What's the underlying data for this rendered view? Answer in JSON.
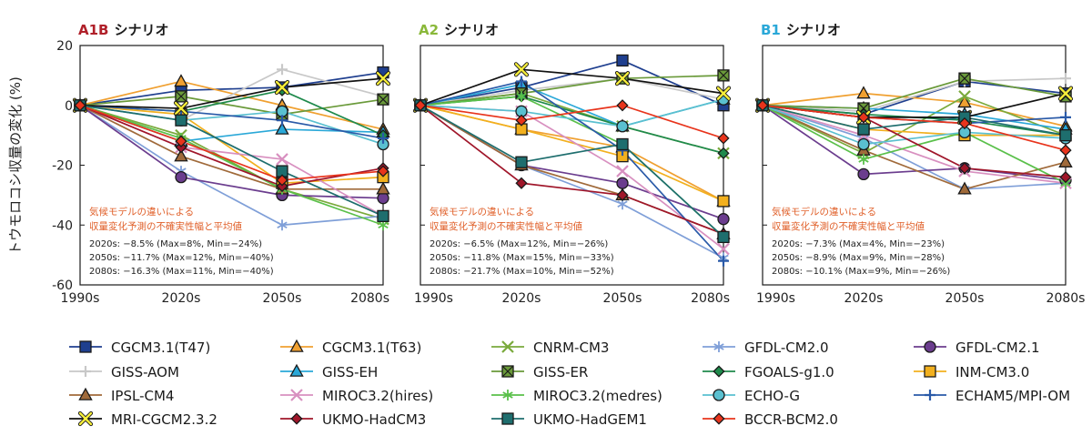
{
  "y_axis_label": "トウモロコシ収量の変化 (%)",
  "note_line1": "気候モデルの違いによる",
  "note_line2": "収量変化予測の不確実性幅と平均値",
  "chart_data": {
    "type": "line",
    "ylim": [
      -60,
      20
    ],
    "yticks": [
      20,
      0,
      -20,
      -40,
      -60
    ],
    "categories": [
      "1990s",
      "2020s",
      "2050s",
      "2080s"
    ],
    "models": [
      {
        "name": "CGCM3.1(T47)",
        "color": "#1f3f8f",
        "marker": "square"
      },
      {
        "name": "CGCM3.1(T63)",
        "color": "#f0a030",
        "marker": "triangle"
      },
      {
        "name": "CNRM-CM3",
        "color": "#7aaa3c",
        "marker": "x"
      },
      {
        "name": "GFDL-CM2.0",
        "color": "#7f9fd8",
        "marker": "asterisk"
      },
      {
        "name": "GFDL-CM2.1",
        "color": "#6b3d8e",
        "marker": "circle"
      },
      {
        "name": "GISS-AOM",
        "color": "#c8c8c8",
        "marker": "plus"
      },
      {
        "name": "GISS-EH",
        "color": "#2aa8d8",
        "marker": "triangle"
      },
      {
        "name": "GISS-ER",
        "color": "#6a9a3a",
        "marker": "boxx"
      },
      {
        "name": "FGOALS-g1.0",
        "color": "#1f8a4c",
        "marker": "diamond"
      },
      {
        "name": "INM-CM3.0",
        "color": "#f2b01e",
        "marker": "square"
      },
      {
        "name": "IPSL-CM4",
        "color": "#a06a3a",
        "marker": "triangle"
      },
      {
        "name": "MIROC3.2(hires)",
        "color": "#d890c0",
        "marker": "x"
      },
      {
        "name": "MIROC3.2(medres)",
        "color": "#5ac04a",
        "marker": "asterisk"
      },
      {
        "name": "ECHO-G",
        "color": "#5ac0d0",
        "marker": "circle"
      },
      {
        "name": "ECHAM5/MPI-OM",
        "color": "#2a5aa8",
        "marker": "plus"
      },
      {
        "name": "MRI-CGCM2.3.2",
        "color": "#111111",
        "marker": "yx"
      },
      {
        "name": "UKMO-HadCM3",
        "color": "#a0162a",
        "marker": "diamond"
      },
      {
        "name": "UKMO-HadGEM1",
        "color": "#1e6e6e",
        "marker": "square"
      },
      {
        "name": "BCCR-BCM2.0",
        "color": "#e8341c",
        "marker": "diamond"
      }
    ],
    "legend_order": [
      "CGCM3.1(T47)",
      "CGCM3.1(T63)",
      "CNRM-CM3",
      "GFDL-CM2.0",
      "GFDL-CM2.1",
      "GISS-AOM",
      "GISS-EH",
      "GISS-ER",
      "FGOALS-g1.0",
      "INM-CM3.0",
      "IPSL-CM4",
      "MIROC3.2(hires)",
      "MIROC3.2(medres)",
      "ECHO-G",
      "ECHAM5/MPI-OM",
      "MRI-CGCM2.3.2",
      "UKMO-HadCM3",
      "UKMO-HadGEM1",
      "BCCR-BCM2.0"
    ],
    "panels": [
      {
        "code": "A1B",
        "title_rest": "シナリオ",
        "code_color": "#b0202a",
        "stats": [
          "2020s: −8.5% (Max=8%, Min=−24%)",
          "2050s: −11.7% (Max=12%, Min=−40%)",
          "2080s: −16.3% (Max=11%, Min=−40%)"
        ],
        "series": {
          "CGCM3.1(T47)": [
            0,
            5,
            6,
            11
          ],
          "CGCM3.1(T63)": [
            0,
            8,
            0,
            -8
          ],
          "CNRM-CM3": [
            0,
            -10,
            -28,
            -38
          ],
          "GFDL-CM2.0": [
            0,
            -22,
            -40,
            -37
          ],
          "GFDL-CM2.1": [
            0,
            -24,
            -30,
            -31
          ],
          "GISS-AOM": [
            0,
            -5,
            12,
            3
          ],
          "GISS-EH": [
            0,
            -12,
            -8,
            -9
          ],
          "GISS-ER": [
            0,
            3,
            -3,
            2
          ],
          "FGOALS-g1.0": [
            0,
            -2,
            5,
            -10
          ],
          "INM-CM3.0": [
            0,
            -3,
            -26,
            -24
          ],
          "IPSL-CM4": [
            0,
            -17,
            -28,
            -28
          ],
          "MIROC3.2(hires)": [
            0,
            -14,
            -18,
            -37
          ],
          "MIROC3.2(medres)": [
            0,
            -11,
            -28,
            -40
          ],
          "ECHO-G": [
            0,
            -5,
            -2,
            -13
          ],
          "ECHAM5/MPI-OM": [
            0,
            -2,
            -5,
            -11
          ],
          "MRI-CGCM2.3.2": [
            0,
            -1,
            6,
            9
          ],
          "UKMO-HadCM3": [
            0,
            -14,
            -27,
            -21
          ],
          "UKMO-HadGEM1": [
            0,
            -5,
            -22,
            -37
          ],
          "BCCR-BCM2.0": [
            0,
            -12,
            -25,
            -22
          ]
        }
      },
      {
        "code": "A2",
        "title_rest": "シナリオ",
        "code_color": "#8ab83a",
        "stats": [
          "2020s: −6.5% (Max=12%, Min=−26%)",
          "2050s: −11.8% (Max=15%, Min=−33%)",
          "2080s: −21.7% (Max=10%, Min=−52%)"
        ],
        "series": {
          "CGCM3.1(T47)": [
            0,
            6,
            15,
            0
          ],
          "CGCM3.1(T63)": [
            0,
            -8,
            -14,
            -32
          ],
          "CNRM-CM3": [
            0,
            4,
            -7,
            -16
          ],
          "GFDL-CM2.0": [
            0,
            -20,
            -33,
            -51
          ],
          "GFDL-CM2.1": [
            0,
            -20,
            -26,
            -38
          ],
          "GISS-AOM": [
            0,
            5,
            9,
            2
          ],
          "GISS-EH": [
            0,
            7,
            -7,
            2
          ],
          "GISS-ER": [
            0,
            4,
            9,
            10
          ],
          "FGOALS-g1.0": [
            0,
            3,
            -7,
            -16
          ],
          "INM-CM3.0": [
            0,
            -8,
            -17,
            -32
          ],
          "IPSL-CM4": [
            0,
            -20,
            -30,
            -43
          ],
          "MIROC3.2(hires)": [
            0,
            -2,
            -22,
            -48
          ],
          "MIROC3.2(medres)": [
            0,
            3,
            -13,
            -44
          ],
          "ECHO-G": [
            0,
            -2,
            -7,
            2
          ],
          "ECHAM5/MPI-OM": [
            0,
            8,
            -15,
            -52
          ],
          "MRI-CGCM2.3.2": [
            0,
            12,
            9,
            4
          ],
          "UKMO-HadCM3": [
            0,
            -26,
            -30,
            -43
          ],
          "UKMO-HadGEM1": [
            0,
            -19,
            -13,
            -44
          ],
          "BCCR-BCM2.0": [
            0,
            -5,
            0,
            -11
          ]
        }
      },
      {
        "code": "B1",
        "title_rest": "シナリオ",
        "code_color": "#2aa8d8",
        "stats": [
          "2020s: −7.3% (Max=4%, Min=−23%)",
          "2050s: −8.9% (Max=9%, Min=−28%)",
          "2080s: −10.1% (Max=9%, Min=−26%)"
        ],
        "series": {
          "CGCM3.1(T47)": [
            0,
            -3,
            8,
            4
          ],
          "CGCM3.1(T63)": [
            0,
            4,
            1,
            -7
          ],
          "CNRM-CM3": [
            0,
            -16,
            3,
            -10
          ],
          "GFDL-CM2.0": [
            0,
            -11,
            -28,
            -26
          ],
          "GFDL-CM2.1": [
            0,
            -23,
            -21,
            -25
          ],
          "GISS-AOM": [
            0,
            -2,
            8,
            9
          ],
          "GISS-EH": [
            0,
            -1,
            -3,
            -8
          ],
          "GISS-ER": [
            0,
            -1,
            9,
            3
          ],
          "FGOALS-g1.0": [
            0,
            -3,
            -5,
            -10
          ],
          "INM-CM3.0": [
            0,
            -8,
            -10,
            -10
          ],
          "IPSL-CM4": [
            0,
            -15,
            -28,
            -19
          ],
          "MIROC3.2(hires)": [
            0,
            -10,
            -22,
            -26
          ],
          "MIROC3.2(medres)": [
            0,
            -18,
            -9,
            -26
          ],
          "ECHO-G": [
            0,
            -13,
            -9,
            -11
          ],
          "ECHAM5/MPI-OM": [
            0,
            -4,
            -6,
            -4
          ],
          "MRI-CGCM2.3.2": [
            0,
            -4,
            -4,
            4
          ],
          "UKMO-HadCM3": [
            0,
            -4,
            -21,
            -24
          ],
          "UKMO-HadGEM1": [
            0,
            -8,
            -4,
            -10
          ],
          "BCCR-BCM2.0": [
            0,
            -4,
            -6,
            -15
          ]
        }
      }
    ]
  }
}
